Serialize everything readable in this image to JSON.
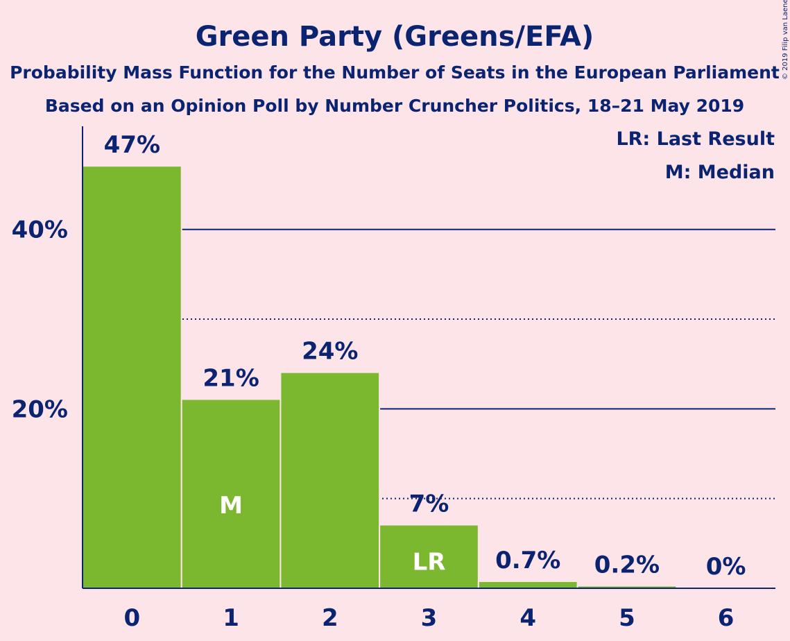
{
  "chart_data": {
    "type": "bar",
    "title": "Green Party (Greens/EFA)",
    "subtitle1": "Probability Mass Function for the Number of Seats in the European Parliament",
    "subtitle2": "Based on an Opinion Poll by Number Cruncher Politics, 18–21 May 2019",
    "copyright": "© 2019 Filip van Laenen",
    "legend": [
      "LR: Last Result",
      "M: Median"
    ],
    "legend_placement": "top-right",
    "categories": [
      "0",
      "1",
      "2",
      "3",
      "4",
      "5",
      "6"
    ],
    "values": [
      47,
      21,
      24,
      7,
      0.7,
      0.2,
      0
    ],
    "value_labels": [
      "47%",
      "21%",
      "24%",
      "7%",
      "0.7%",
      "0.2%",
      "0%"
    ],
    "markers": {
      "1": "M",
      "3": "LR"
    },
    "yticks": [
      {
        "value": 20,
        "label": "20%"
      },
      {
        "value": 40,
        "label": "40%"
      }
    ],
    "dotted_gridlines": [
      10,
      30
    ],
    "ylim": [
      0,
      51.5
    ],
    "xlabel": "",
    "ylabel": "",
    "bar_color": "#7cb82f",
    "axis_color": "#0a2472"
  }
}
